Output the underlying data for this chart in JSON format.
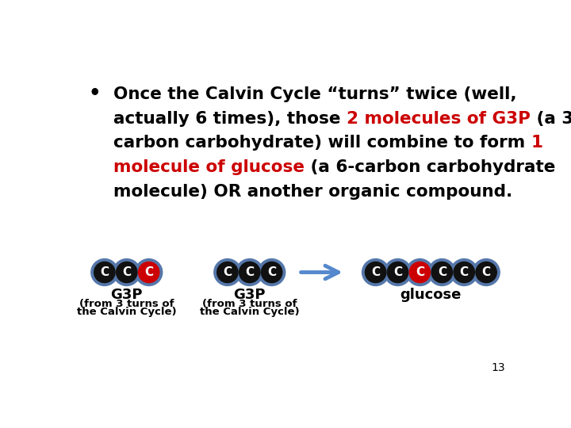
{
  "background_color": "#ffffff",
  "text_color": "#000000",
  "red_color": "#cc0000",
  "circle_border": "#5577aa",
  "circle_label": "#ffffff",
  "g3p_label": "G3P",
  "g3p_sublabel_1": "(from 3 turns of",
  "g3p_sublabel_2": "the Calvin Cycle)",
  "glucose_label": "glucose",
  "arrow_color": "#5588cc",
  "page_number": "13",
  "font_size": 15.5,
  "mol_font_size": 11,
  "sub_font_size": 9.5,
  "label_font_size": 13
}
